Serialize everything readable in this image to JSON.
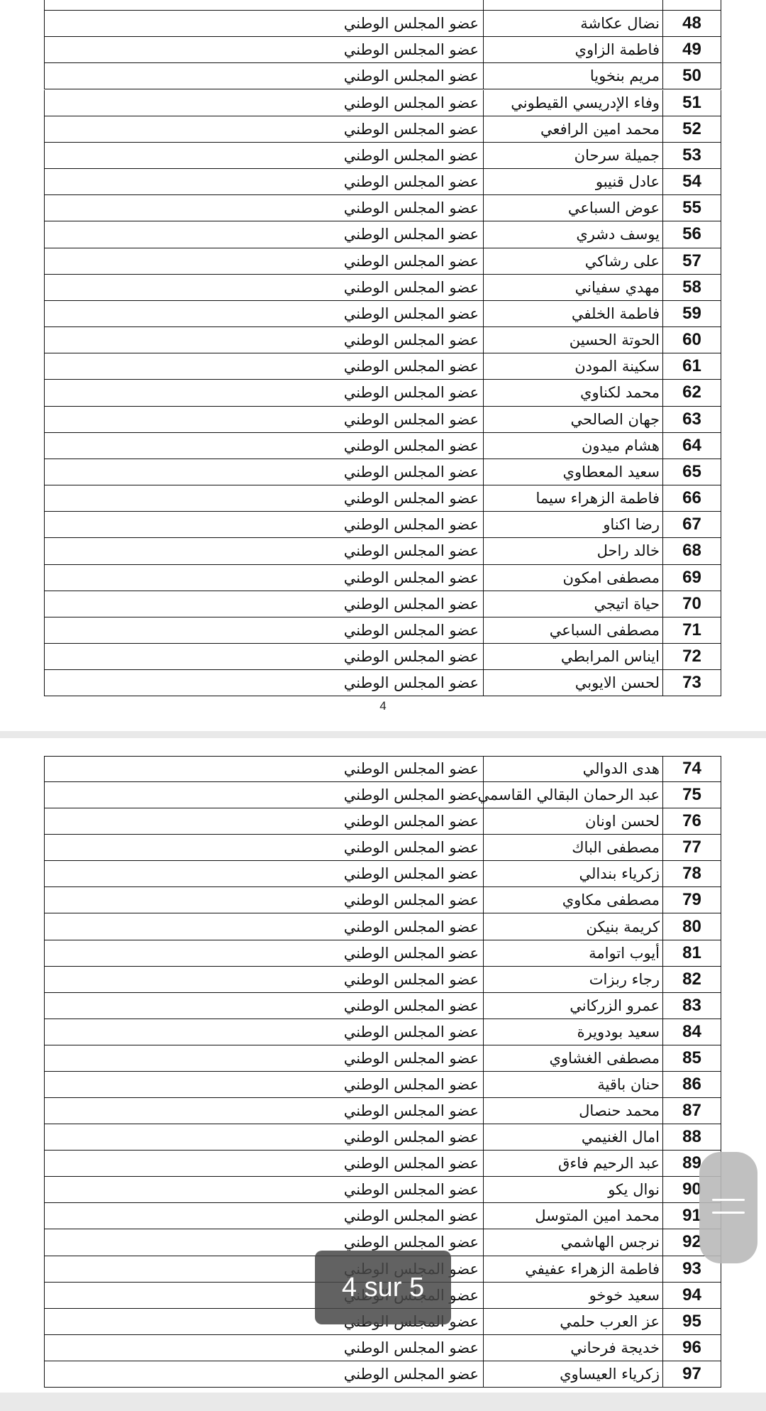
{
  "pages": [
    {
      "rows": [
        [
          48,
          "نضال عكاشة",
          "عضو المجلس الوطني"
        ],
        [
          49,
          "فاطمة الزاوي",
          "عضو المجلس الوطني"
        ],
        [
          50,
          "مريم بنخويا",
          "عضو المجلس الوطني"
        ],
        [
          51,
          "وفاء الإدريسي القيطوني",
          "عضو المجلس الوطني"
        ],
        [
          52,
          "محمد امين الرافعي",
          "عضو المجلس الوطني"
        ],
        [
          53,
          "جميلة سرحان",
          "عضو المجلس الوطني"
        ],
        [
          54,
          "عادل قنيبو",
          "عضو المجلس الوطني"
        ],
        [
          55,
          "عوض السباعي",
          "عضو المجلس الوطني"
        ],
        [
          56,
          "يوسف دشري",
          "عضو المجلس الوطني"
        ],
        [
          57,
          "على رشاكي",
          "عضو المجلس الوطني"
        ],
        [
          58,
          "مهدي سفياني",
          "عضو المجلس الوطني"
        ],
        [
          59,
          "فاطمة الخلفي",
          "عضو المجلس الوطني"
        ],
        [
          60,
          "الحوتة الحسين",
          "عضو المجلس الوطني"
        ],
        [
          61,
          "سكينة المودن",
          "عضو المجلس الوطني"
        ],
        [
          62,
          "محمد لكناوي",
          "عضو المجلس الوطني"
        ],
        [
          63,
          "جهان الصالحي",
          "عضو المجلس الوطني"
        ],
        [
          64,
          "هشام ميدون",
          "عضو المجلس الوطني"
        ],
        [
          65,
          "سعيد المعطاوي",
          "عضو المجلس الوطني"
        ],
        [
          66,
          "فاطمة الزهراء سيما",
          "عضو المجلس الوطني"
        ],
        [
          67,
          "رضا اكناو",
          "عضو المجلس الوطني"
        ],
        [
          68,
          "خالد راحل",
          "عضو المجلس الوطني"
        ],
        [
          69,
          "مصطفى امكون",
          "عضو المجلس الوطني"
        ],
        [
          70,
          "حياة اتيجي",
          "عضو المجلس الوطني"
        ],
        [
          71,
          "مصطفى السباعي",
          "عضو المجلس الوطني"
        ],
        [
          72,
          "ايناس المرابطي",
          "عضو المجلس الوطني"
        ],
        [
          73,
          "لحسن الايوبي",
          "عضو المجلس الوطني"
        ]
      ],
      "page_number": 4
    },
    {
      "rows": [
        [
          74,
          "هدى الدوالي",
          "عضو المجلس الوطني"
        ],
        [
          75,
          "عبد الرحمان البقالي القاسمي",
          "عضو المجلس الوطني"
        ],
        [
          76,
          "لحسن اونان",
          "عضو المجلس الوطني"
        ],
        [
          77,
          "مصطفى الباك",
          "عضو المجلس الوطني"
        ],
        [
          78,
          "زكرياء بندالي",
          "عضو المجلس الوطني"
        ],
        [
          79,
          "مصطفى مكاوي",
          "عضو المجلس الوطني"
        ],
        [
          80,
          "كريمة بنيكن",
          "عضو المجلس الوطني"
        ],
        [
          81,
          "أيوب اتوامة",
          "عضو المجلس الوطني"
        ],
        [
          82,
          "رجاء ربزات",
          "عضو المجلس الوطني"
        ],
        [
          83,
          "عمرو الزركاني",
          "عضو المجلس الوطني"
        ],
        [
          84,
          "سعيد بودويرة",
          "عضو المجلس الوطني"
        ],
        [
          85,
          "مصطفى الغشاوي",
          "عضو المجلس الوطني"
        ],
        [
          86,
          "حنان باقية",
          "عضو المجلس الوطني"
        ],
        [
          87,
          "محمد حنصال",
          "عضو المجلس الوطني"
        ],
        [
          88,
          "امال الغنيمي",
          "عضو المجلس الوطني"
        ],
        [
          89,
          "عبد الرحيم فاءق",
          "عضو المجلس الوطني"
        ],
        [
          90,
          "نوال يكو",
          "عضو المجلس الوطني"
        ],
        [
          91,
          "محمد امين المتوسل",
          "عضو المجلس الوطني"
        ],
        [
          92,
          "نرجس الهاشمي",
          "عضو المجلس الوطني"
        ],
        [
          93,
          "فاطمة الزهراء عفيفي",
          "عضو المجلس الوطني"
        ],
        [
          94,
          "سعيد خوخو",
          "عضو المجلس الوطني"
        ],
        [
          95,
          "عز العرب حلمي",
          "عضو المجلس الوطني"
        ],
        [
          96,
          "خديجة فرحاني",
          "عضو المجلس الوطني"
        ],
        [
          97,
          "زكرياء العيساوي",
          "عضو المجلس الوطني"
        ]
      ]
    }
  ],
  "page_indicator": "4 sur 5"
}
